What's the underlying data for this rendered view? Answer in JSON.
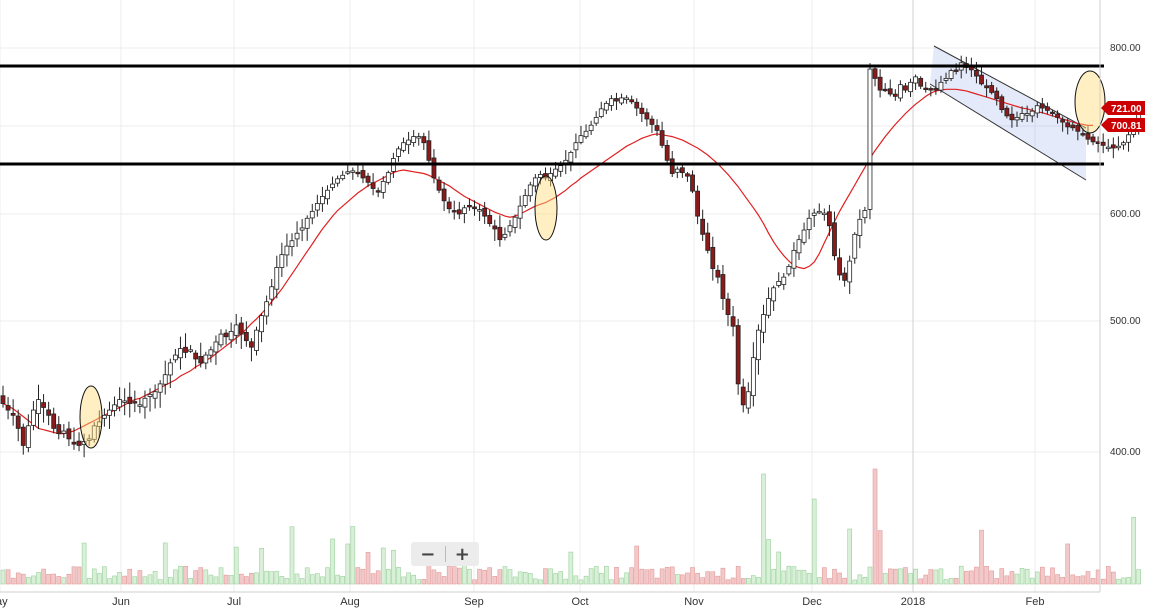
{
  "chart_data": {
    "type": "candlestick",
    "x_labels": [
      "ay",
      "Jun",
      "Jul",
      "Aug",
      "Sep",
      "Oct",
      "Nov",
      "Dec",
      "2018",
      "Feb"
    ],
    "y_ticks": [
      400,
      500,
      600,
      700,
      800
    ],
    "y_tick_labels": [
      "400.00",
      "500.00",
      "600.00",
      "700.00",
      "800.00"
    ],
    "ylim": [
      315,
      800
    ],
    "price_badges": [
      {
        "label": "721.00",
        "value": 721,
        "color": "#cc0000"
      },
      {
        "label": "700.81",
        "value": 700.81,
        "color": "#cc0000"
      }
    ],
    "close": [
      437,
      432,
      428,
      418,
      405,
      420,
      432,
      440,
      434,
      428,
      418,
      414,
      416,
      410,
      406,
      405,
      408,
      410,
      420,
      423,
      428,
      432,
      436,
      440,
      439,
      437,
      438,
      436,
      441,
      444,
      446,
      452,
      459,
      468,
      474,
      479,
      476,
      478,
      471,
      468,
      474,
      478,
      484,
      490,
      488,
      492,
      497,
      490,
      485,
      480,
      493,
      505,
      518,
      532,
      550,
      562,
      570,
      575,
      582,
      587,
      596,
      603,
      612,
      620,
      627,
      634,
      640,
      644,
      648,
      649,
      647,
      641,
      636,
      629,
      626,
      637,
      647,
      663,
      674,
      681,
      684,
      688,
      688,
      681,
      661,
      641,
      627,
      615,
      606,
      603,
      600,
      607,
      609,
      606,
      605,
      598,
      591,
      586,
      576,
      581,
      589,
      597,
      609,
      621,
      633,
      641,
      645,
      641,
      646,
      651,
      655,
      661,
      670,
      681,
      689,
      694,
      701,
      711,
      722,
      729,
      735,
      732,
      736,
      736,
      731,
      723,
      716,
      709,
      702,
      695,
      678,
      661,
      646,
      651,
      647,
      643,
      626,
      598,
      581,
      566,
      549,
      541,
      521,
      506,
      496,
      452,
      436,
      446,
      472,
      493,
      506,
      521,
      531,
      537,
      541,
      551,
      566,
      576,
      585,
      596,
      601,
      603,
      601,
      589,
      561,
      543,
      538,
      556,
      581,
      595,
      604,
      773,
      761,
      746,
      746,
      741,
      738,
      753,
      746,
      756,
      763,
      751,
      748,
      746,
      746,
      756,
      761,
      771,
      770,
      781,
      775,
      772,
      764,
      754,
      749,
      743,
      735,
      721,
      713,
      708,
      711,
      716,
      716,
      719,
      726,
      723,
      720,
      716,
      711,
      705,
      699,
      698,
      694,
      691,
      685,
      682,
      680,
      678,
      676,
      675,
      677,
      681,
      690,
      700.81,
      721
    ],
    "ma_line": [
      437,
      435,
      433,
      430,
      427,
      424,
      421,
      418,
      417,
      416,
      415,
      414,
      414,
      415,
      416,
      418,
      420,
      422,
      424,
      426,
      428,
      430,
      432,
      434,
      436,
      438,
      440,
      441,
      443,
      445,
      447,
      449,
      451,
      453,
      455,
      458,
      460,
      462,
      465,
      467,
      470,
      472,
      475,
      478,
      481,
      484,
      487,
      490,
      494,
      498,
      502,
      507,
      512,
      518,
      524,
      530,
      537,
      544,
      551,
      558,
      565,
      572,
      579,
      586,
      592,
      598,
      604,
      609,
      614,
      619,
      624,
      628,
      632,
      635,
      638,
      641,
      644,
      647,
      649,
      650,
      649,
      648,
      647,
      646,
      644,
      641,
      638,
      635,
      632,
      628,
      624,
      620,
      617,
      614,
      611,
      608,
      605,
      602,
      600,
      598,
      597,
      598,
      600,
      603,
      606,
      609,
      611,
      613,
      616,
      619,
      623,
      627,
      632,
      636,
      641,
      645,
      649,
      653,
      657,
      661,
      665,
      669,
      673,
      677,
      680,
      683,
      686,
      688,
      690,
      691,
      690,
      689,
      688,
      686,
      684,
      681,
      678,
      675,
      671,
      667,
      662,
      657,
      651,
      645,
      638,
      631,
      623,
      615,
      607,
      599,
      591,
      582,
      574,
      567,
      561,
      556,
      552,
      550,
      549,
      551,
      555,
      563,
      573,
      583,
      593,
      603,
      613,
      623,
      633,
      643,
      653,
      663,
      672,
      680,
      688,
      695,
      702,
      709,
      716,
      722,
      728,
      733,
      738,
      742,
      745,
      746,
      747,
      747,
      747,
      746,
      745,
      743,
      741,
      739,
      737,
      735,
      733,
      731,
      729,
      727,
      725,
      723,
      722,
      720,
      718,
      717,
      715,
      713,
      711,
      709,
      707,
      705,
      703,
      702,
      700.81,
      700.81
    ]
  }
}
